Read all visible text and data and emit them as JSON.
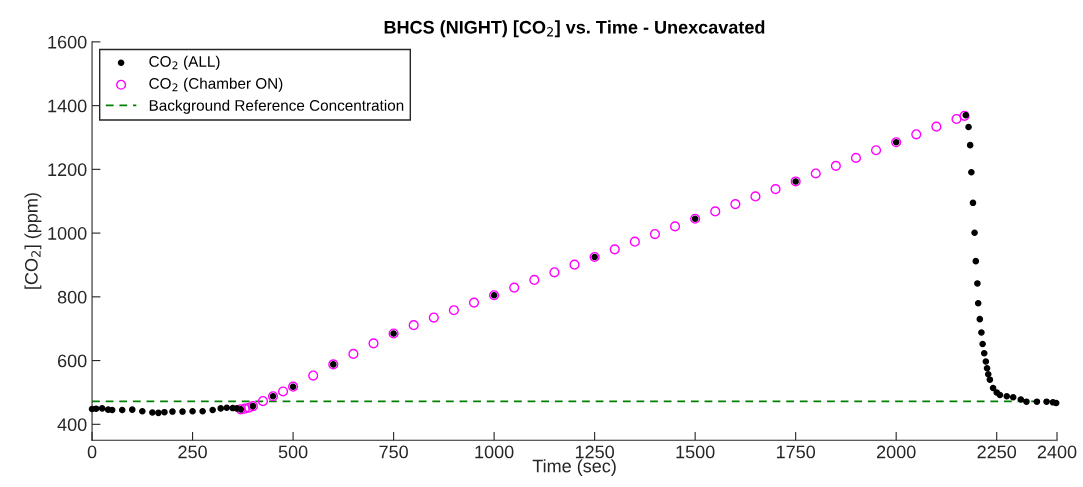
{
  "chart_data": {
    "type": "scatter",
    "title": "BHCS (NIGHT) [CO$_{2}$] vs. Time - Unexcavated",
    "xlabel": "Time (sec)",
    "ylabel": "[CO$_{2}$] (ppm)",
    "xlim": [
      0,
      2400
    ],
    "ylim": [
      350,
      1600
    ],
    "xticks": [
      0,
      250,
      500,
      750,
      1000,
      1250,
      1500,
      1750,
      2000,
      2250,
      2400
    ],
    "yticks": [
      400,
      600,
      800,
      1000,
      1200,
      1400,
      1600
    ],
    "grid": false,
    "legend": "top left",
    "series": [
      {
        "name": "CO$_{2}$ (ALL)",
        "marker": "circle",
        "color": "#000000",
        "x": [
          0,
          10,
          25,
          40,
          50,
          75,
          100,
          125,
          150,
          165,
          180,
          200,
          225,
          250,
          275,
          300,
          320,
          335,
          350,
          360,
          370,
          400,
          450,
          500,
          600,
          750,
          1000,
          1250,
          1500,
          1750,
          2000,
          2170,
          2173,
          2180,
          2184,
          2187,
          2191,
          2195,
          2198,
          2202,
          2204,
          2208,
          2212,
          2215,
          2219,
          2223,
          2226,
          2229,
          2233,
          2241,
          2250,
          2258,
          2275,
          2291,
          2310,
          2324,
          2350,
          2374,
          2390,
          2398
        ],
        "values": [
          448,
          449,
          450,
          446,
          445,
          445,
          446,
          441,
          437,
          436,
          438,
          440,
          440,
          441,
          441,
          445,
          450,
          452,
          451,
          450,
          447,
          457,
          488,
          518,
          588,
          685,
          805,
          925,
          1045,
          1162,
          1285,
          null,
          1370,
          1333,
          1276,
          1191,
          1095,
          1001,
          912,
          842,
          780,
          730,
          688,
          652,
          623,
          597,
          576,
          557,
          540,
          514,
          500,
          492,
          488,
          485,
          478,
          471,
          471,
          471,
          469,
          467
        ]
      },
      {
        "name": "CO$_{2}$ (Chamber ON)",
        "marker": "circle_open",
        "color": "#ff00ff",
        "x": [
          370,
          380,
          390,
          400,
          425,
          450,
          475,
          500,
          550,
          600,
          650,
          700,
          750,
          800,
          850,
          900,
          950,
          1000,
          1050,
          1100,
          1150,
          1200,
          1250,
          1300,
          1350,
          1400,
          1450,
          1500,
          1550,
          1600,
          1650,
          1700,
          1750,
          1800,
          1850,
          1900,
          1950,
          2000,
          2050,
          2100,
          2150,
          2170
        ],
        "values": [
          447,
          449,
          452,
          457,
          473,
          488,
          503,
          518,
          553,
          588,
          621,
          654,
          685,
          711,
          735,
          758,
          782,
          805,
          829,
          853,
          877,
          901,
          925,
          949,
          973,
          997,
          1021,
          1045,
          1068,
          1091,
          1115,
          1138,
          1162,
          1187,
          1211,
          1236,
          1260,
          1285,
          1310,
          1334,
          1358,
          1368
        ]
      }
    ],
    "ref_lines": [
      {
        "axis": "y",
        "value": 472,
        "label": "Background Reference Concentration",
        "color": "#008000",
        "line_style": "dashed"
      }
    ]
  }
}
